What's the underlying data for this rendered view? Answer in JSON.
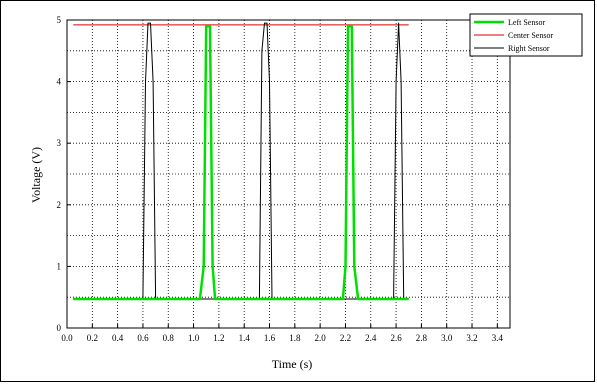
{
  "chart_data": {
    "type": "line",
    "title": "",
    "xlabel": "Time (s)",
    "ylabel": "Voltage (V)",
    "xlim": [
      0,
      3.5
    ],
    "ylim": [
      0,
      5
    ],
    "grid": true,
    "legend": "top-right",
    "x_ticks": [
      "0.0",
      "0.2",
      "0.4",
      "0.6",
      "0.8",
      "1.0",
      "1.2",
      "1.4",
      "1.6",
      "1.8",
      "2.0",
      "2.2",
      "2.4",
      "2.6",
      "2.8",
      "3.0",
      "3.2",
      "3.4"
    ],
    "y_ticks": [
      "0",
      "1",
      "2",
      "3",
      "4",
      "5"
    ],
    "series": [
      {
        "name": "Left Sensor",
        "color": "#00e000",
        "points": [
          [
            0.05,
            0.47
          ],
          [
            1.05,
            0.47
          ],
          [
            1.08,
            1.0
          ],
          [
            1.1,
            4.9
          ],
          [
            1.13,
            4.9
          ],
          [
            1.15,
            1.0
          ],
          [
            1.17,
            0.47
          ],
          [
            2.18,
            0.47
          ],
          [
            2.2,
            1.0
          ],
          [
            2.22,
            4.9
          ],
          [
            2.25,
            4.9
          ],
          [
            2.27,
            1.0
          ],
          [
            2.3,
            0.47
          ],
          [
            2.7,
            0.47
          ]
        ]
      },
      {
        "name": "Center Sensor",
        "color": "#e00000",
        "points": [
          [
            0.05,
            4.92
          ],
          [
            2.7,
            4.92
          ]
        ]
      },
      {
        "name": "Right Sensor",
        "color": "#000000",
        "points": [
          [
            0.05,
            0.47
          ],
          [
            0.6,
            0.47
          ],
          [
            0.62,
            4.0
          ],
          [
            0.64,
            4.95
          ],
          [
            0.66,
            4.95
          ],
          [
            0.68,
            4.0
          ],
          [
            0.7,
            0.47
          ],
          [
            1.52,
            0.47
          ],
          [
            1.54,
            4.5
          ],
          [
            1.56,
            4.95
          ],
          [
            1.58,
            4.95
          ],
          [
            1.6,
            4.0
          ],
          [
            1.62,
            0.47
          ],
          [
            2.58,
            0.47
          ],
          [
            2.6,
            4.0
          ],
          [
            2.62,
            4.95
          ],
          [
            2.64,
            4.0
          ],
          [
            2.66,
            0.47
          ],
          [
            2.7,
            0.47
          ]
        ]
      }
    ]
  }
}
